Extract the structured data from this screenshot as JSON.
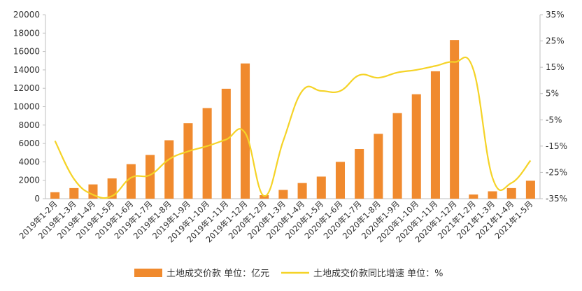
{
  "chart_data": {
    "type": "bar",
    "categories": [
      "2019年1-2月",
      "2019年1-3月",
      "2019年1-4月",
      "2019年1-5月",
      "2019年1-6月",
      "2019年1-7月",
      "2019年1-8月",
      "2019年1-9月",
      "2019年1-10月",
      "2019年1-11月",
      "2019年1-12月",
      "2020年1-2月",
      "2020年1-3月",
      "2020年1-4月",
      "2020年1-5月",
      "2020年1-6月",
      "2020年1-7月",
      "2020年1-8月",
      "2020年1-9月",
      "2020年1-10月",
      "2020年1-11月",
      "2020年1-12月",
      "2021年1-2月",
      "2021年1-3月",
      "2021年1-4月",
      "2021年1-5月"
    ],
    "series": [
      {
        "name": "土地成交价款 单位：亿元",
        "type": "bar",
        "axis": "left",
        "color": "#F08A2E",
        "values": [
          700,
          1150,
          1550,
          2200,
          3750,
          4750,
          6350,
          8200,
          9850,
          11950,
          14700,
          380,
          950,
          1700,
          2400,
          4000,
          5400,
          7050,
          9300,
          11350,
          13850,
          17250,
          450,
          800,
          1150,
          1950
        ]
      },
      {
        "name": "土地成交价款同比增速 单位：%",
        "type": "line",
        "axis": "right",
        "color": "#F5D327",
        "values": [
          -13,
          -27.5,
          -33.5,
          -34,
          -27,
          -26,
          -20,
          -17,
          -15,
          -12.5,
          -10,
          -34,
          -13,
          6,
          6,
          6,
          12,
          11,
          13,
          14,
          15.5,
          17,
          14,
          -27,
          -29,
          -20.5
        ]
      }
    ],
    "ylim": [
      0,
      20000
    ],
    "yticks": [
      "0",
      "2000",
      "4000",
      "6000",
      "8000",
      "10000",
      "12000",
      "14000",
      "16000",
      "18000",
      "20000"
    ],
    "y2lim": [
      -35,
      35
    ],
    "y2ticks": [
      "-35%",
      "-25%",
      "-15%",
      "-5%",
      "5%",
      "15%",
      "25%",
      "35%"
    ],
    "xlabel": "",
    "ylabel": "",
    "grid": false,
    "legend": "bottom-center"
  }
}
